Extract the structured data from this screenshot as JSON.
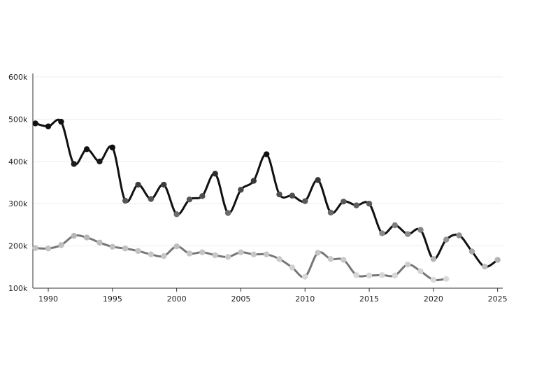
{
  "chart_data": {
    "type": "line",
    "title": "",
    "xlabel": "",
    "ylabel": "",
    "xlim": [
      1988.8,
      2025.4
    ],
    "ylim": [
      100000,
      600000
    ],
    "grid": "horizontal",
    "x_ticks": [
      1990,
      1995,
      2000,
      2005,
      2010,
      2015,
      2020,
      2025
    ],
    "y_ticks": [
      100000,
      200000,
      300000,
      400000,
      500000,
      600000
    ],
    "x_tick_labels": [
      "1990",
      "1995",
      "2000",
      "2005",
      "2010",
      "2015",
      "2020",
      "2025"
    ],
    "y_tick_labels": [
      "100k",
      "200k",
      "300k",
      "400k",
      "500k",
      "600k"
    ],
    "series": [
      {
        "name": "",
        "color": "#111111",
        "x": [
          1989,
          1990,
          1991,
          1992,
          1993,
          1994,
          1995,
          1996,
          1997,
          1998,
          1999,
          2000,
          2001,
          2002,
          2003,
          2004,
          2005,
          2006,
          2007,
          2008,
          2009,
          2010,
          2011,
          2012,
          2013,
          2014,
          2015,
          2016,
          2017,
          2018,
          2019,
          2020,
          2021,
          2022,
          2023,
          2024,
          2025
        ],
        "values": [
          490000,
          483000,
          494000,
          394000,
          429000,
          400000,
          433000,
          307000,
          345000,
          311000,
          345000,
          275000,
          310000,
          318000,
          371000,
          278000,
          333000,
          354000,
          417000,
          322000,
          319000,
          306000,
          356000,
          279000,
          305000,
          296000,
          300000,
          230000,
          249000,
          228000,
          238000,
          169000,
          215000,
          225000,
          187000,
          151000,
          167000
        ]
      },
      {
        "name": "",
        "color": "#777777",
        "x": [
          1989,
          1990,
          1991,
          1992,
          1993,
          1994,
          1995,
          1996,
          1997,
          1998,
          1999,
          2000,
          2001,
          2002,
          2003,
          2004,
          2005,
          2006,
          2007,
          2008,
          2009,
          2010,
          2011,
          2012,
          2013,
          2014,
          2015,
          2016,
          2017,
          2018,
          2019,
          2020,
          2021
        ],
        "values": [
          195000,
          194000,
          202000,
          224000,
          220000,
          208000,
          198000,
          194000,
          188000,
          180000,
          176000,
          199000,
          182000,
          185000,
          178000,
          174000,
          185000,
          180000,
          180000,
          169000,
          149000,
          127000,
          184000,
          169000,
          167000,
          131000,
          130000,
          131000,
          130000,
          156000,
          140000,
          120000,
          122000
        ]
      }
    ]
  }
}
